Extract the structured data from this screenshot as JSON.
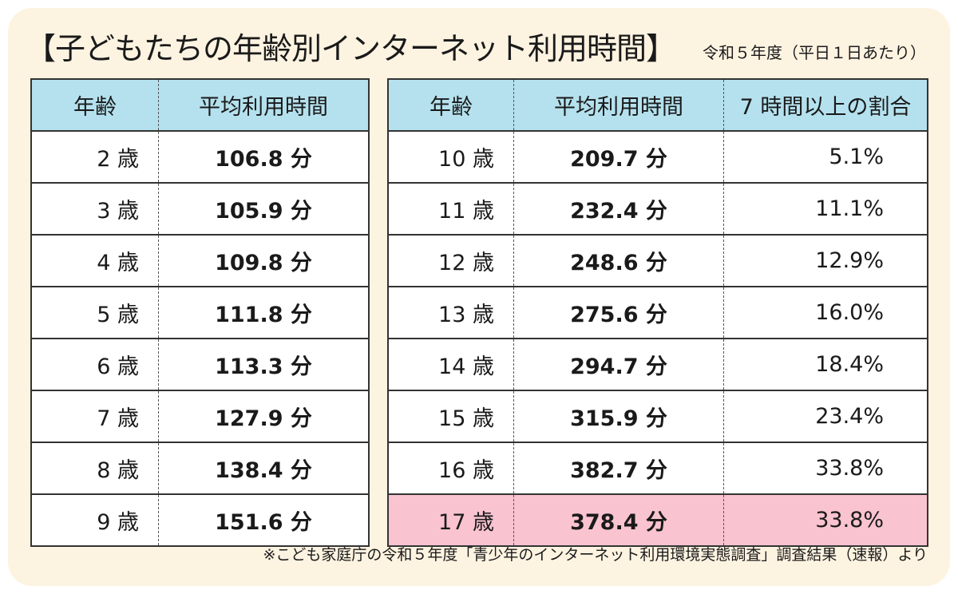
{
  "title": "【子どもたちの年齢別インターネット利用時間】",
  "subtitle": "令和５年度（平日１日あたり）",
  "left_table": {
    "headers": [
      "年齢",
      "平均利用時間"
    ],
    "rows": [
      {
        "age": "2 歳",
        "avg": "106.8 分"
      },
      {
        "age": "3 歳",
        "avg": "105.9 分"
      },
      {
        "age": "4 歳",
        "avg": "109.8 分"
      },
      {
        "age": "5 歳",
        "avg": "111.8 分"
      },
      {
        "age": "6 歳",
        "avg": "113.3 分"
      },
      {
        "age": "7 歳",
        "avg": "127.9 分"
      },
      {
        "age": "8 歳",
        "avg": "138.4 分"
      },
      {
        "age": "9 歳",
        "avg": "151.6 分"
      }
    ]
  },
  "right_table": {
    "headers": [
      "年齢",
      "平均利用時間",
      "7 時間以上の割合"
    ],
    "rows": [
      {
        "age": "10 歳",
        "avg": "209.7 分",
        "pct": "5.1%"
      },
      {
        "age": "11 歳",
        "avg": "232.4 分",
        "pct": "11.1%"
      },
      {
        "age": "12 歳",
        "avg": "248.6 分",
        "pct": "12.9%"
      },
      {
        "age": "13 歳",
        "avg": "275.6 分",
        "pct": "16.0%"
      },
      {
        "age": "14 歳",
        "avg": "294.7 分",
        "pct": "18.4%"
      },
      {
        "age": "15 歳",
        "avg": "315.9 分",
        "pct": "23.4%"
      },
      {
        "age": "16 歳",
        "avg": "382.7 分",
        "pct": "33.8%"
      },
      {
        "age": "17 歳",
        "avg": "378.4 分",
        "pct": "33.8%"
      }
    ]
  },
  "footnote": "※こども家庭庁の令和５年度「青少年のインターネット利用環境実態調査」調査結果（速報）より",
  "colors": {
    "background": "#fdf3e1",
    "header": "#b5e1ee",
    "highlight": "#f9c3d0"
  }
}
